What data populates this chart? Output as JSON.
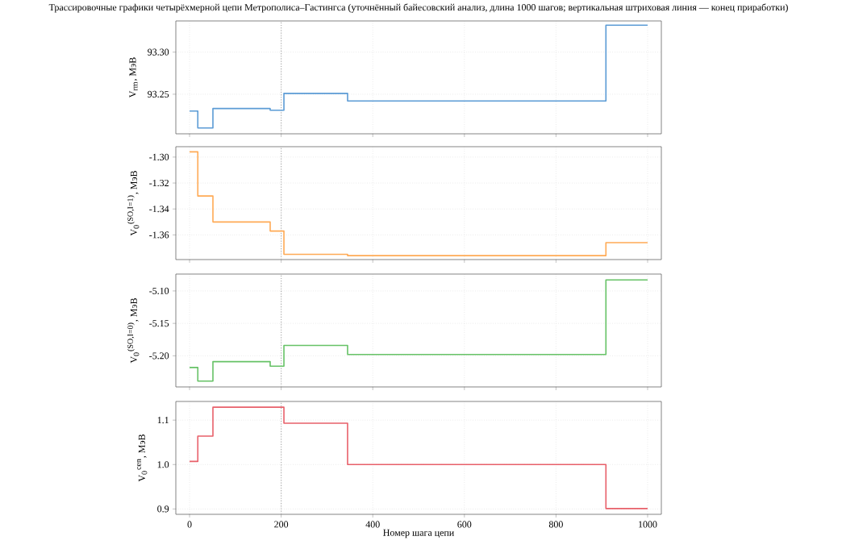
{
  "chart_data": [
    {
      "type": "step",
      "title": "Трассировочные графики четырёхмерной цепи Метрополиса–Гастингса (уточнённый байесовский анализ, длина 1000 шагов; вертикальная штриховая линия — конец приработки)",
      "ylabel": "V$_{rm}$, МэВ",
      "x": [
        0,
        18,
        51,
        176,
        206,
        345,
        909,
        1000
      ],
      "series": [
        {
          "color": "#5b9bd5",
          "values": [
            93.23,
            93.21,
            93.233,
            93.231,
            93.251,
            93.242,
            93.332,
            93.332
          ]
        }
      ],
      "xlim": [
        -30,
        1030
      ],
      "xticks": [
        0,
        200,
        400,
        600,
        800,
        1000
      ],
      "ylim": [
        93.203,
        93.337
      ],
      "yticks": [
        {
          "value": 93.25,
          "label": "93.25"
        },
        {
          "value": 93.3,
          "label": "93.30"
        }
      ],
      "tick_labels": "y",
      "grid": true,
      "ref_lines": [
        {
          "axis": "x",
          "value": 200,
          "color": "#b0b0b0",
          "line_style": "dotted"
        }
      ]
    },
    {
      "type": "step",
      "ylabel": "V$_{0}$$^{(SO,I=1)}$, МэВ",
      "x": [
        0,
        18,
        51,
        176,
        206,
        345,
        909,
        1000
      ],
      "series": [
        {
          "color": "#ffaa55",
          "values": [
            -1.296,
            -1.33,
            -1.35,
            -1.357,
            -1.375,
            -1.376,
            -1.366,
            -1.366
          ]
        }
      ],
      "xlim": [
        -30,
        1030
      ],
      "xticks": [
        0,
        200,
        400,
        600,
        800,
        1000
      ],
      "ylim": [
        -1.379,
        -1.292
      ],
      "yticks": [
        {
          "value": -1.36,
          "label": "-1.36"
        },
        {
          "value": -1.34,
          "label": "-1.34"
        },
        {
          "value": -1.32,
          "label": "-1.32"
        },
        {
          "value": -1.3,
          "label": "-1.30"
        }
      ],
      "tick_labels": "y",
      "grid": true,
      "ref_lines": [
        {
          "axis": "x",
          "value": 200,
          "color": "#b0b0b0",
          "line_style": "dotted"
        }
      ]
    },
    {
      "type": "step",
      "ylabel": "V$_{0}$$^{(SO,I=0)}$, МэВ",
      "x": [
        0,
        18,
        51,
        176,
        206,
        345,
        909,
        1000
      ],
      "series": [
        {
          "color": "#66c266",
          "values": [
            -5.218,
            -5.239,
            -5.209,
            -5.216,
            -5.184,
            -5.198,
            -5.083,
            -5.083
          ]
        }
      ],
      "xlim": [
        -30,
        1030
      ],
      "xticks": [
        0,
        200,
        400,
        600,
        800,
        1000
      ],
      "ylim": [
        -5.248,
        -5.074
      ],
      "yticks": [
        {
          "value": -5.2,
          "label": "-5.20"
        },
        {
          "value": -5.15,
          "label": "-5.15"
        },
        {
          "value": -5.1,
          "label": "-5.10"
        }
      ],
      "tick_labels": "y",
      "grid": true,
      "ref_lines": [
        {
          "axis": "x",
          "value": 200,
          "color": "#b0b0b0",
          "line_style": "dotted"
        }
      ]
    },
    {
      "type": "step",
      "ylabel": "V$_{0}$$^{cen}$, МэВ",
      "xlabel": "Номер шага цепи",
      "x": [
        0,
        18,
        51,
        176,
        206,
        345,
        909,
        1000
      ],
      "series": [
        {
          "color": "#e8606a",
          "values": [
            1.007,
            1.064,
            1.129,
            1.129,
            1.093,
            1.0,
            0.901,
            0.901
          ]
        }
      ],
      "xlim": [
        -30,
        1030
      ],
      "xticks": [
        0,
        200,
        400,
        600,
        800,
        1000
      ],
      "ylim": [
        0.888,
        1.142
      ],
      "yticks": [
        {
          "value": 0.9,
          "label": "0.9"
        },
        {
          "value": 1.0,
          "label": "1.0"
        },
        {
          "value": 1.1,
          "label": "1.1"
        }
      ],
      "grid": true,
      "ref_lines": [
        {
          "axis": "x",
          "value": 200,
          "color": "#b0b0b0",
          "line_style": "dotted"
        }
      ]
    }
  ]
}
